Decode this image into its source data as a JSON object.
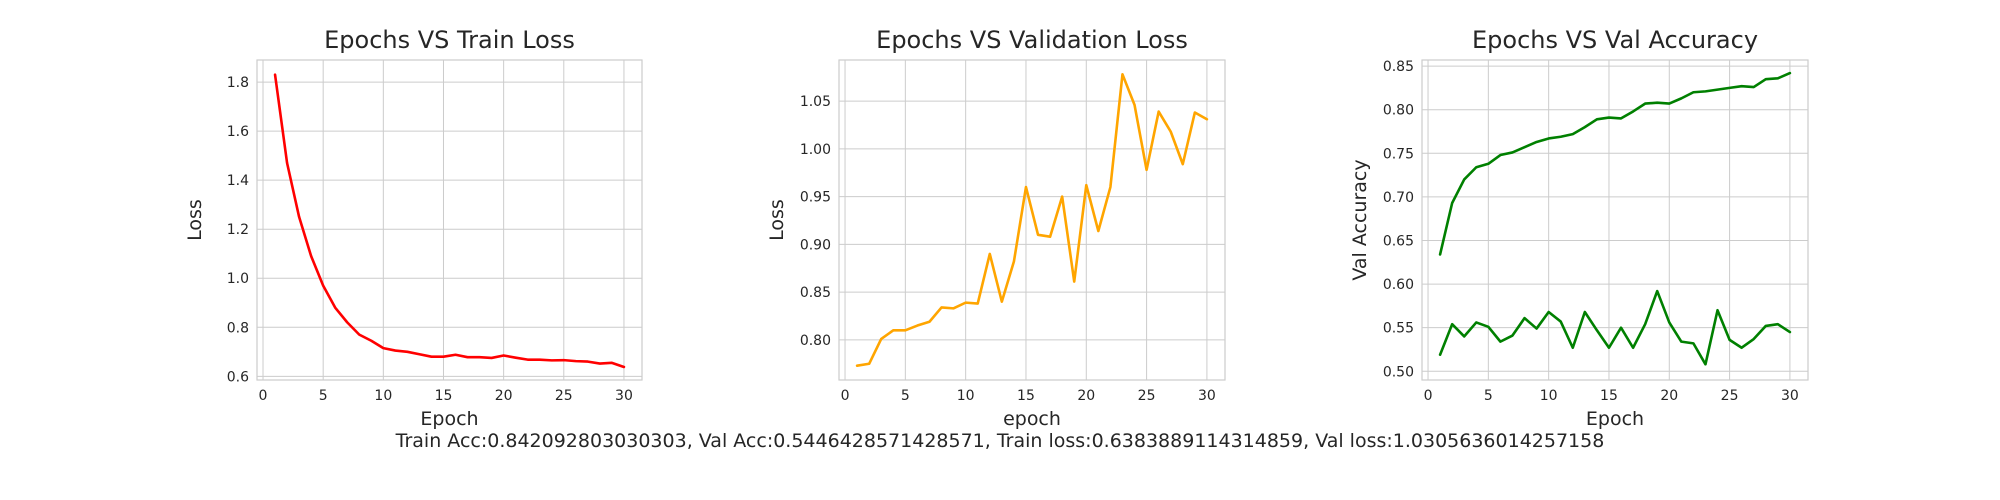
{
  "summary": "Train Acc:0.842092803030303, Val Acc:0.5446428571428571, Train loss:0.6383889114314859, Val loss:1.0305636014257158",
  "chart_data": [
    {
      "type": "line",
      "title": "Epochs VS Train Loss",
      "xlabel": "Epoch",
      "ylabel": "Loss",
      "xlim": [
        -0.5,
        31.5
      ],
      "ylim": [
        0.585,
        1.89
      ],
      "xticks": [
        0,
        5,
        10,
        15,
        20,
        25,
        30
      ],
      "yticks": [
        0.6,
        0.8,
        1.0,
        1.2,
        1.4,
        1.6,
        1.8
      ],
      "ytick_decimals": 1,
      "grid": true,
      "x": [
        1,
        2,
        3,
        4,
        5,
        6,
        7,
        8,
        9,
        10,
        11,
        12,
        13,
        14,
        15,
        16,
        17,
        18,
        19,
        20,
        21,
        22,
        23,
        24,
        25,
        26,
        27,
        28,
        29,
        30
      ],
      "series": [
        {
          "color": "#ff0000",
          "values": [
            1.83,
            1.47,
            1.25,
            1.09,
            0.97,
            0.88,
            0.82,
            0.77,
            0.745,
            0.715,
            0.705,
            0.7,
            0.69,
            0.68,
            0.68,
            0.688,
            0.678,
            0.678,
            0.675,
            0.685,
            0.676,
            0.668,
            0.668,
            0.665,
            0.666,
            0.662,
            0.66,
            0.652,
            0.655,
            0.638
          ]
        }
      ]
    },
    {
      "type": "line",
      "title": "Epochs VS Validation Loss",
      "xlabel": "epoch",
      "ylabel": "Loss",
      "xlim": [
        -0.5,
        31.5
      ],
      "ylim": [
        0.758,
        1.093
      ],
      "xticks": [
        0,
        5,
        10,
        15,
        20,
        25,
        30
      ],
      "yticks": [
        0.8,
        0.85,
        0.9,
        0.95,
        1.0,
        1.05
      ],
      "ytick_decimals": 2,
      "grid": true,
      "x": [
        1,
        2,
        3,
        4,
        5,
        6,
        7,
        8,
        9,
        10,
        11,
        12,
        13,
        14,
        15,
        16,
        17,
        18,
        19,
        20,
        21,
        22,
        23,
        24,
        25,
        26,
        27,
        28,
        29,
        30
      ],
      "series": [
        {
          "color": "#ffa500",
          "values": [
            0.773,
            0.775,
            0.801,
            0.81,
            0.81,
            0.815,
            0.819,
            0.834,
            0.833,
            0.839,
            0.838,
            0.89,
            0.84,
            0.882,
            0.96,
            0.91,
            0.908,
            0.95,
            0.861,
            0.962,
            0.914,
            0.96,
            1.078,
            1.046,
            0.978,
            1.039,
            1.018,
            0.984,
            1.038,
            1.031
          ]
        }
      ]
    },
    {
      "type": "line",
      "title": "Epochs VS Val Accuracy",
      "xlabel": "Epoch",
      "ylabel": "Val Accuracy",
      "xlim": [
        -0.5,
        31.5
      ],
      "ylim": [
        0.49,
        0.857
      ],
      "xticks": [
        0,
        5,
        10,
        15,
        20,
        25,
        30
      ],
      "yticks": [
        0.5,
        0.55,
        0.6,
        0.65,
        0.7,
        0.75,
        0.8,
        0.85
      ],
      "ytick_decimals": 2,
      "grid": true,
      "x": [
        1,
        2,
        3,
        4,
        5,
        6,
        7,
        8,
        9,
        10,
        11,
        12,
        13,
        14,
        15,
        16,
        17,
        18,
        19,
        20,
        21,
        22,
        23,
        24,
        25,
        26,
        27,
        28,
        29,
        30
      ],
      "series": [
        {
          "color": "#008000",
          "values": [
            0.634,
            0.693,
            0.72,
            0.734,
            0.738,
            0.748,
            0.751,
            0.757,
            0.763,
            0.767,
            0.769,
            0.772,
            0.78,
            0.789,
            0.791,
            0.79,
            0.798,
            0.807,
            0.808,
            0.807,
            0.813,
            0.82,
            0.821,
            0.823,
            0.825,
            0.827,
            0.826,
            0.835,
            0.836,
            0.842
          ]
        },
        {
          "color": "#008000",
          "values": [
            0.519,
            0.554,
            0.54,
            0.556,
            0.551,
            0.534,
            0.541,
            0.561,
            0.549,
            0.568,
            0.557,
            0.527,
            0.568,
            0.547,
            0.527,
            0.55,
            0.527,
            0.554,
            0.592,
            0.556,
            0.534,
            0.532,
            0.508,
            0.57,
            0.536,
            0.527,
            0.537,
            0.552,
            0.554,
            0.545
          ]
        }
      ]
    }
  ]
}
